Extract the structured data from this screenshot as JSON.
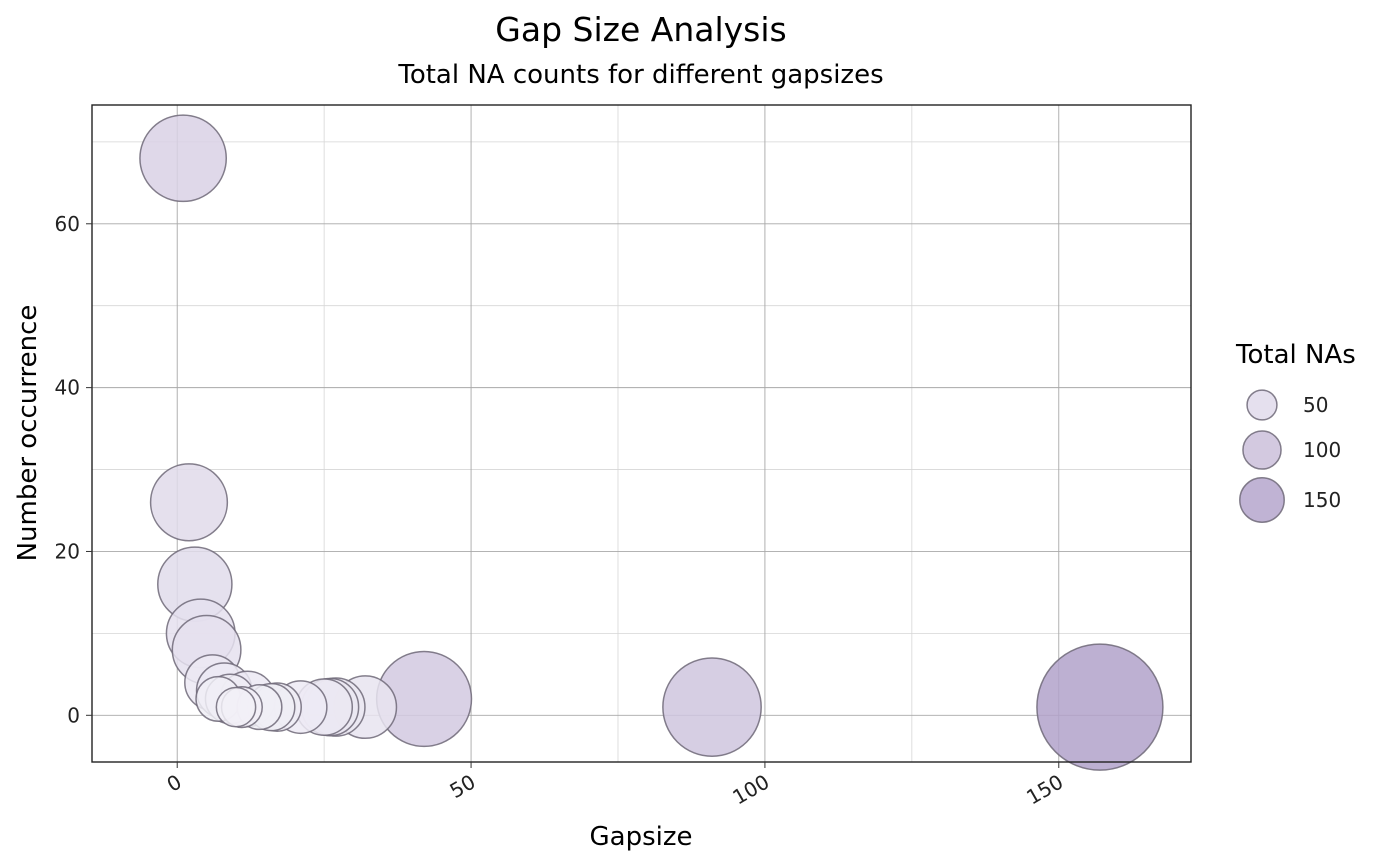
{
  "chart_data": {
    "type": "scatter",
    "title": "Gap Size Analysis",
    "subtitle": "Total NA counts for different gapsizes",
    "xlabel": "Gapsize",
    "ylabel": "Number occurrence",
    "xlim": [
      -14.5,
      172.5
    ],
    "ylim": [
      -5.7,
      74.5
    ],
    "x_ticks": [
      0,
      50,
      100,
      150
    ],
    "y_ticks": [
      0,
      20,
      40,
      60
    ],
    "grid": true,
    "legend_position": "right",
    "legend": {
      "title": "Total NAs",
      "entries": [
        {
          "label": "50",
          "value": 50
        },
        {
          "label": "100",
          "value": 100
        },
        {
          "label": "150",
          "value": 150
        }
      ]
    },
    "colors": {
      "low": "#f2f0f7",
      "high": "#b2a2ca",
      "stroke": "#6e6878"
    },
    "points": [
      {
        "x": 1,
        "y": 68,
        "size": 68
      },
      {
        "x": 2,
        "y": 26,
        "size": 52
      },
      {
        "x": 3,
        "y": 16,
        "size": 48
      },
      {
        "x": 4,
        "y": 10,
        "size": 40
      },
      {
        "x": 5,
        "y": 8,
        "size": 40
      },
      {
        "x": 6,
        "y": 4,
        "size": 24
      },
      {
        "x": 7,
        "y": 2,
        "size": 14
      },
      {
        "x": 8,
        "y": 3,
        "size": 24
      },
      {
        "x": 9,
        "y": 2,
        "size": 18
      },
      {
        "x": 10,
        "y": 1,
        "size": 10
      },
      {
        "x": 11,
        "y": 1,
        "size": 11
      },
      {
        "x": 12,
        "y": 2,
        "size": 24
      },
      {
        "x": 14,
        "y": 1,
        "size": 14
      },
      {
        "x": 16,
        "y": 1,
        "size": 16
      },
      {
        "x": 17,
        "y": 1,
        "size": 17
      },
      {
        "x": 21,
        "y": 1,
        "size": 21
      },
      {
        "x": 25,
        "y": 1,
        "size": 25
      },
      {
        "x": 26,
        "y": 1,
        "size": 26
      },
      {
        "x": 27,
        "y": 1,
        "size": 27
      },
      {
        "x": 32,
        "y": 1,
        "size": 32
      },
      {
        "x": 42,
        "y": 2,
        "size": 84
      },
      {
        "x": 91,
        "y": 1,
        "size": 91
      },
      {
        "x": 157,
        "y": 1,
        "size": 157
      }
    ]
  }
}
